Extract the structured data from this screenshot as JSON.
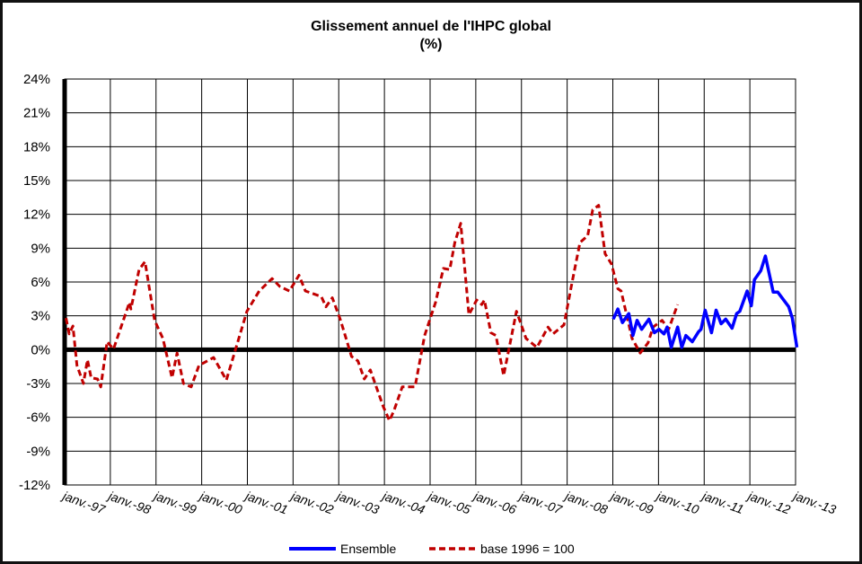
{
  "chart_data": {
    "type": "line",
    "title": "Glissement annuel de l'IHPC global",
    "subtitle": "(%)",
    "xlabel": "",
    "ylabel": "",
    "ylim": [
      -12,
      24
    ],
    "yticks": [
      24,
      21,
      18,
      15,
      12,
      9,
      6,
      3,
      0,
      -3,
      -6,
      -9,
      -12
    ],
    "ytick_labels": [
      "24%",
      "21%",
      "18%",
      "15%",
      "12%",
      "9%",
      "6%",
      "3%",
      "0%",
      "-3%",
      "-6%",
      "-9%",
      "-12%"
    ],
    "xlim": [
      1997,
      2013
    ],
    "xtick_labels": [
      "janv.-97",
      "janv.-98",
      "janv.-99",
      "janv.-00",
      "janv.-01",
      "janv.-02",
      "janv.-03",
      "janv.-04",
      "janv.-05",
      "janv.-06",
      "janv.-07",
      "janv.-08",
      "janv.-09",
      "janv.-10",
      "janv.-11",
      "janv.-12",
      "janv.-13"
    ],
    "grid": true,
    "legend_position": "bottom",
    "series": [
      {
        "name": "Ensemble",
        "color": "#0000ff",
        "style": "solid",
        "x": [
          2009.01,
          2009.11,
          2009.21,
          2009.35,
          2009.44,
          2009.53,
          2009.63,
          2009.79,
          2009.91,
          2010.01,
          2010.12,
          2010.19,
          2010.28,
          2010.42,
          2010.51,
          2010.6,
          2010.74,
          2010.88,
          2010.93,
          2011.02,
          2011.16,
          2011.26,
          2011.37,
          2011.47,
          2011.61,
          2011.71,
          2011.78,
          2011.94,
          2012.03,
          2012.1,
          2012.24,
          2012.34,
          2012.51,
          2012.61,
          2012.85,
          2012.93,
          2013.03
        ],
        "y": [
          2.7,
          3.6,
          2.4,
          3.2,
          1.25,
          2.6,
          1.8,
          2.7,
          1.5,
          1.8,
          1.4,
          2.0,
          0.2,
          2.0,
          0.2,
          1.25,
          0.7,
          1.6,
          1.8,
          3.5,
          1.5,
          3.5,
          2.3,
          2.7,
          1.9,
          3.2,
          3.4,
          5.2,
          3.9,
          6.2,
          7.0,
          8.3,
          5.1,
          5.1,
          3.8,
          2.8,
          0.2
        ]
      },
      {
        "name": "base 1996 = 100",
        "color": "#c00000",
        "style": "dashed",
        "x": [
          1997.03,
          1997.1,
          1997.18,
          1997.27,
          1997.41,
          1997.5,
          1997.58,
          1997.72,
          1997.79,
          1997.93,
          1998.07,
          1998.42,
          1998.45,
          1998.63,
          1998.76,
          1998.97,
          1999.15,
          1999.35,
          1999.46,
          1999.6,
          1999.77,
          1999.94,
          2000.26,
          2000.54,
          2000.99,
          2001.26,
          2001.54,
          2001.71,
          2001.92,
          2002.13,
          2002.27,
          2002.62,
          2002.72,
          2002.86,
          2003.04,
          2003.28,
          2003.42,
          2003.56,
          2003.69,
          2003.97,
          2004.11,
          2004.21,
          2004.39,
          2004.67,
          2004.88,
          2005.12,
          2005.29,
          2005.43,
          2005.54,
          2005.67,
          2005.85,
          2006.02,
          2006.13,
          2006.19,
          2006.33,
          2006.44,
          2006.61,
          2006.89,
          2007.1,
          2007.34,
          2007.58,
          2007.69,
          2007.93,
          2008.1,
          2008.28,
          2008.45,
          2008.56,
          2008.69,
          2008.83,
          2008.97,
          2009.11,
          2009.18,
          2009.42,
          2009.6,
          2009.77,
          2009.88,
          2010.08,
          2010.22,
          2010.42
        ],
        "y": [
          2.8,
          1.4,
          2.1,
          -1.4,
          -3.0,
          -0.9,
          -2.5,
          -2.6,
          -3.3,
          0.7,
          0.05,
          4.2,
          3.6,
          7.1,
          7.8,
          2.6,
          1.0,
          -2.5,
          -0.3,
          -3.0,
          -3.3,
          -1.4,
          -0.7,
          -2.7,
          3.4,
          5.2,
          6.3,
          5.6,
          5.2,
          6.6,
          5.2,
          4.7,
          3.8,
          4.6,
          2.6,
          -0.6,
          -1.0,
          -2.6,
          -1.8,
          -5.0,
          -6.3,
          -5.4,
          -3.3,
          -3.3,
          1.25,
          4.2,
          7.2,
          7.1,
          9.5,
          11.2,
          3.1,
          4.4,
          4.0,
          4.4,
          1.5,
          1.25,
          -2.3,
          3.4,
          1.0,
          0.2,
          2.0,
          1.4,
          2.2,
          5.8,
          9.5,
          10.1,
          12.4,
          12.8,
          8.5,
          7.6,
          5.4,
          5.2,
          1.0,
          -0.3,
          0.6,
          2.0,
          2.6,
          1.8,
          4.0
        ]
      }
    ]
  }
}
